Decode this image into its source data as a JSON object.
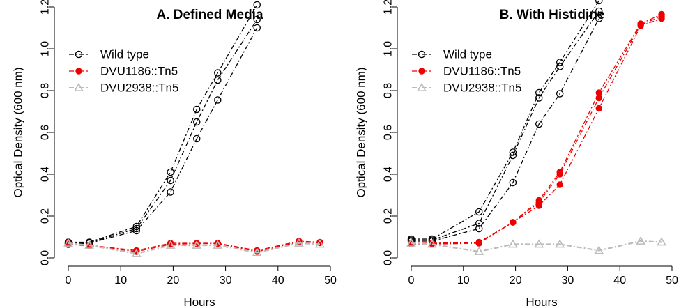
{
  "chart_data": [
    {
      "type": "line",
      "title": "A. Defined Media",
      "xlabel": "Hours",
      "ylabel": "Optical Density (600 nm)",
      "xlim": [
        0,
        50
      ],
      "ylim": [
        0,
        1.25
      ],
      "xticks": [
        0,
        10,
        20,
        30,
        40,
        50
      ],
      "yticks": [
        0.0,
        0.2,
        0.4,
        0.6,
        0.8,
        1.0,
        1.2
      ],
      "grid": false,
      "legend_position": "top-left",
      "series": [
        {
          "name": "Wild type",
          "color": "#000000",
          "marker": "open-circle",
          "replicates": [
            {
              "x": [
                0,
                4,
                13,
                19.5,
                24.5,
                28.5,
                36
              ],
              "y": [
                0.075,
                0.075,
                0.15,
                0.41,
                0.71,
                0.885,
                1.21
              ]
            },
            {
              "x": [
                0,
                4,
                13,
                19.5,
                24.5,
                28.5,
                36
              ],
              "y": [
                0.07,
                0.072,
                0.14,
                0.37,
                0.65,
                0.85,
                1.14
              ]
            },
            {
              "x": [
                0,
                4,
                13,
                19.5,
                24.5,
                28.5,
                36
              ],
              "y": [
                0.065,
                0.07,
                0.13,
                0.315,
                0.57,
                0.755,
                1.1
              ]
            }
          ]
        },
        {
          "name": "DVU1186::Tn5",
          "color": "#ee0000",
          "marker": "filled-circle",
          "replicates": [
            {
              "x": [
                0,
                4,
                13,
                19.5,
                24.5,
                28.5,
                36,
                44,
                48
              ],
              "y": [
                0.07,
                0.06,
                0.035,
                0.07,
                0.07,
                0.07,
                0.035,
                0.08,
                0.075
              ]
            },
            {
              "x": [
                0,
                4,
                13,
                19.5,
                24.5,
                28.5,
                36,
                44,
                48
              ],
              "y": [
                0.065,
                0.057,
                0.03,
                0.065,
                0.068,
                0.068,
                0.03,
                0.076,
                0.072
              ]
            }
          ]
        },
        {
          "name": "DVU2938::Tn5",
          "color": "#bbbbbb",
          "marker": "open-triangle",
          "replicates": [
            {
              "x": [
                0,
                4,
                13,
                19.5,
                24.5,
                28.5,
                36,
                44,
                48
              ],
              "y": [
                0.07,
                0.06,
                0.02,
                0.06,
                0.06,
                0.06,
                0.025,
                0.07,
                0.065
              ]
            }
          ]
        }
      ]
    },
    {
      "type": "line",
      "title": "B. With Histidine",
      "xlabel": "Hours",
      "ylabel": "Optical Density (600 nm)",
      "xlim": [
        0,
        50
      ],
      "ylim": [
        0,
        1.25
      ],
      "xticks": [
        0,
        10,
        20,
        30,
        40,
        50
      ],
      "yticks": [
        0.0,
        0.2,
        0.4,
        0.6,
        0.8,
        1.0,
        1.2
      ],
      "grid": false,
      "legend_position": "top-left",
      "series": [
        {
          "name": "Wild type",
          "color": "#000000",
          "marker": "open-circle",
          "replicates": [
            {
              "x": [
                0,
                4,
                13,
                19.5,
                24.5,
                28.5,
                36
              ],
              "y": [
                0.09,
                0.09,
                0.22,
                0.505,
                0.79,
                0.935,
                1.23
              ]
            },
            {
              "x": [
                0,
                4,
                13,
                19.5,
                24.5,
                28.5,
                36
              ],
              "y": [
                0.085,
                0.085,
                0.165,
                0.49,
                0.765,
                0.915,
                1.18
              ]
            },
            {
              "x": [
                0,
                4,
                13,
                19.5,
                24.5,
                28.5,
                36
              ],
              "y": [
                0.08,
                0.08,
                0.14,
                0.36,
                0.64,
                0.785,
                1.145
              ]
            }
          ]
        },
        {
          "name": "DVU1186::Tn5",
          "color": "#ee0000",
          "marker": "filled-circle",
          "replicates": [
            {
              "x": [
                0,
                4,
                13,
                19.5,
                24.5,
                28.5,
                36,
                44,
                48
              ],
              "y": [
                0.07,
                0.07,
                0.075,
                0.17,
                0.275,
                0.41,
                0.79,
                1.12,
                1.165
              ]
            },
            {
              "x": [
                0,
                4,
                13,
                19.5,
                24.5,
                28.5,
                36,
                44,
                48
              ],
              "y": [
                0.068,
                0.068,
                0.072,
                0.17,
                0.265,
                0.4,
                0.765,
                1.115,
                1.155
              ]
            },
            {
              "x": [
                0,
                4,
                13,
                19.5,
                24.5,
                28.5,
                36,
                44,
                48
              ],
              "y": [
                0.066,
                0.066,
                0.07,
                0.17,
                0.25,
                0.35,
                0.715,
                1.11,
                1.145
              ]
            }
          ]
        },
        {
          "name": "DVU2938::Tn5",
          "color": "#bbbbbb",
          "marker": "open-triangle",
          "replicates": [
            {
              "x": [
                0,
                4,
                13,
                19.5,
                24.5,
                28.5,
                36,
                44,
                48
              ],
              "y": [
                0.07,
                0.065,
                0.03,
                0.065,
                0.065,
                0.065,
                0.035,
                0.08,
                0.075
              ]
            }
          ]
        }
      ]
    }
  ]
}
